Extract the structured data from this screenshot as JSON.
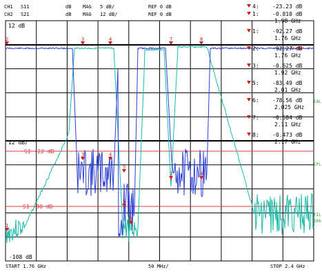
{
  "header": {
    "ch1_label": "CH1",
    "ch1_param": "S11",
    "ch1_format": "dB",
    "ch1_mode": "MAG",
    "ch1_scale": "5 dB/",
    "ch1_ref": "REF 0 dB",
    "ch2_label": "CH2",
    "ch2_param": "S21",
    "ch2_format": "dB",
    "ch2_mode": "MAG",
    "ch2_scale": "12 dB/",
    "ch2_ref": "REF 0 dB"
  },
  "left_labels": {
    "top": "12 dB",
    "mid": "12 dB/",
    "bottom": "-108 dB",
    "right_zero": "0 dB"
  },
  "limit_lines": {
    "l1_label": "S1 -22 dB",
    "l2_label": "S1 -80 dB"
  },
  "footer": {
    "start": "START  1.76 GHz",
    "span": "50 MHz/",
    "stop": "STOP 2.4 GHz"
  },
  "markers": [
    {
      "name": "4:",
      "value": "-23.23 dB",
      "freq": ""
    },
    {
      "name": "1:",
      "value": "-0.810 dB",
      "freq": "1.98 GHz"
    },
    {
      "name": "1:",
      "value": "-92.27 dB",
      "freq": "1.76 GHz"
    },
    {
      "name": "2:",
      "value": "-92.27 dB",
      "freq": "1.76 GHz"
    },
    {
      "name": "3:",
      "value": "-0.625 dB",
      "freq": "1.92 GHz"
    },
    {
      "name": "5:",
      "value": "-83.49 dB",
      "freq": "2.01 GHz"
    },
    {
      "name": "6:",
      "value": "-78.56 dB",
      "freq": "2.025 GHz"
    },
    {
      "name": "7:",
      "value": "-0.584 dB",
      "freq": "2.11 GHz"
    },
    {
      "name": "8:",
      "value": "-0.473 dB",
      "freq": "2.17 GHz"
    }
  ],
  "side_tags": {
    "cal": "CAL",
    "cpl": "CPL",
    "fil": "FIL",
    "fil2": "10k"
  },
  "trace_markers": [
    "1",
    "2",
    "3",
    "4",
    "5",
    "6",
    "7",
    "8"
  ],
  "colors": {
    "trace1": "#2b3fd4",
    "trace2": "#19b8a6",
    "limit": "#d44040",
    "marker": "#d01a1a",
    "grid": "#000000",
    "side_tag": "#2ca02c"
  }
}
